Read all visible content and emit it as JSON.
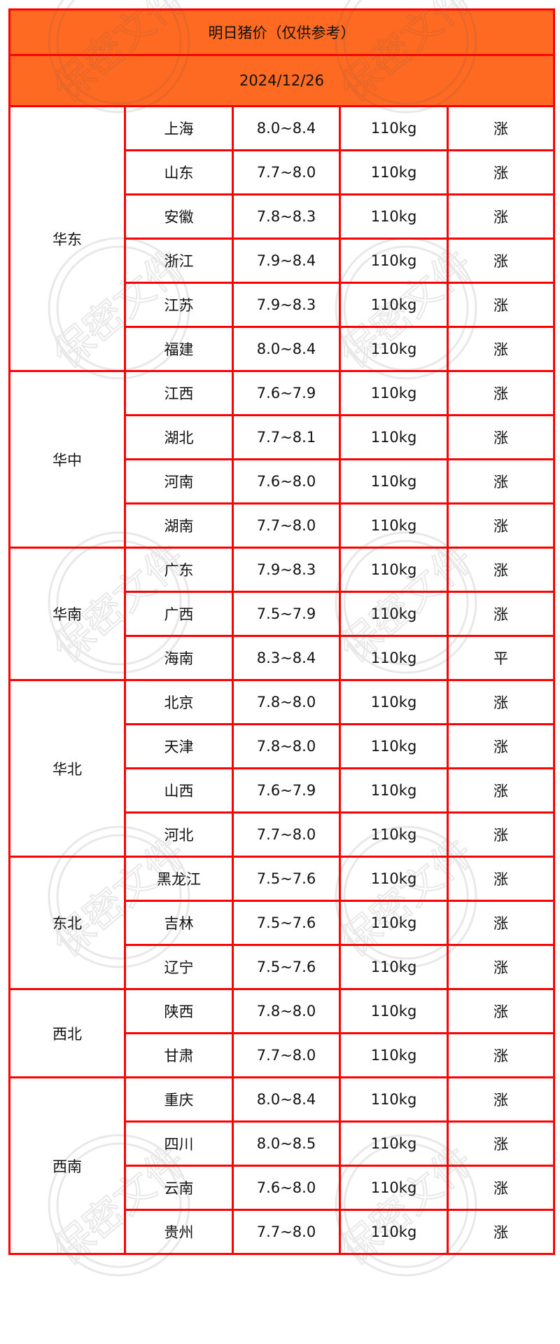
{
  "title": "明日猪价（仅供参考）",
  "date": "2024/12/26",
  "watermark": "保密文件",
  "colors": {
    "header_bg": "#ff6a22",
    "border": "#ff0000",
    "rise": "#ff2a4d",
    "flat": "#111111"
  },
  "regions": [
    {
      "name": "华东",
      "rows": [
        {
          "province": "上海",
          "price": "8.0~8.4",
          "weight": "110kg",
          "trend": "涨"
        },
        {
          "province": "山东",
          "price": "7.7~8.0",
          "weight": "110kg",
          "trend": "涨"
        },
        {
          "province": "安徽",
          "price": "7.8~8.3",
          "weight": "110kg",
          "trend": "涨"
        },
        {
          "province": "浙江",
          "price": "7.9~8.4",
          "weight": "110kg",
          "trend": "涨"
        },
        {
          "province": "江苏",
          "price": "7.9~8.3",
          "weight": "110kg",
          "trend": "涨"
        },
        {
          "province": "福建",
          "price": "8.0~8.4",
          "weight": "110kg",
          "trend": "涨"
        }
      ]
    },
    {
      "name": "华中",
      "rows": [
        {
          "province": "江西",
          "price": "7.6~7.9",
          "weight": "110kg",
          "trend": "涨"
        },
        {
          "province": "湖北",
          "price": "7.7~8.1",
          "weight": "110kg",
          "trend": "涨"
        },
        {
          "province": "河南",
          "price": "7.6~8.0",
          "weight": "110kg",
          "trend": "涨"
        },
        {
          "province": "湖南",
          "price": "7.7~8.0",
          "weight": "110kg",
          "trend": "涨"
        }
      ]
    },
    {
      "name": "华南",
      "rows": [
        {
          "province": "广东",
          "price": "7.9~8.3",
          "weight": "110kg",
          "trend": "涨"
        },
        {
          "province": "广西",
          "price": "7.5~7.9",
          "weight": "110kg",
          "trend": "涨"
        },
        {
          "province": "海南",
          "price": "8.3~8.4",
          "weight": "110kg",
          "trend": "平"
        }
      ]
    },
    {
      "name": "华北",
      "rows": [
        {
          "province": "北京",
          "price": "7.8~8.0",
          "weight": "110kg",
          "trend": "涨"
        },
        {
          "province": "天津",
          "price": "7.8~8.0",
          "weight": "110kg",
          "trend": "涨"
        },
        {
          "province": "山西",
          "price": "7.6~7.9",
          "weight": "110kg",
          "trend": "涨"
        },
        {
          "province": "河北",
          "price": "7.7~8.0",
          "weight": "110kg",
          "trend": "涨"
        }
      ]
    },
    {
      "name": "东北",
      "rows": [
        {
          "province": "黑龙江",
          "price": "7.5~7.6",
          "weight": "110kg",
          "trend": "涨"
        },
        {
          "province": "吉林",
          "price": "7.5~7.6",
          "weight": "110kg",
          "trend": "涨"
        },
        {
          "province": "辽宁",
          "price": "7.5~7.6",
          "weight": "110kg",
          "trend": "涨"
        }
      ]
    },
    {
      "name": "西北",
      "rows": [
        {
          "province": "陕西",
          "price": "7.8~8.0",
          "weight": "110kg",
          "trend": "涨"
        },
        {
          "province": "甘肃",
          "price": "7.7~8.0",
          "weight": "110kg",
          "trend": "涨"
        }
      ]
    },
    {
      "name": "西南",
      "rows": [
        {
          "province": "重庆",
          "price": "8.0~8.4",
          "weight": "110kg",
          "trend": "涨"
        },
        {
          "province": "四川",
          "price": "8.0~8.5",
          "weight": "110kg",
          "trend": "涨"
        },
        {
          "province": "云南",
          "price": "7.6~8.0",
          "weight": "110kg",
          "trend": "涨"
        },
        {
          "province": "贵州",
          "price": "7.7~8.0",
          "weight": "110kg",
          "trend": "涨"
        }
      ]
    }
  ]
}
